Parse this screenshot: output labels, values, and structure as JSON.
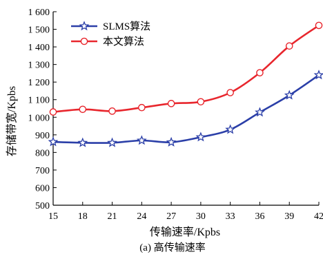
{
  "chart_data": {
    "type": "line",
    "caption": "(a) 高传输速率",
    "xlabel": "传输速率/Kpbs",
    "ylabel": "存储带宽/Kpbs",
    "x": [
      15,
      18,
      21,
      24,
      27,
      30,
      33,
      36,
      39,
      42
    ],
    "xticks": [
      "15",
      "18",
      "21",
      "24",
      "27",
      "30",
      "33",
      "36",
      "39",
      "42"
    ],
    "xlim": [
      15,
      42
    ],
    "ylim": [
      500,
      1600
    ],
    "yticks": [
      500,
      600,
      700,
      800,
      900,
      1000,
      1100,
      1200,
      1300,
      1400,
      1500,
      1600
    ],
    "ytick_labels": [
      "500",
      "600",
      "700",
      "800",
      "900",
      "1 000",
      "1 100",
      "1 200",
      "1 300",
      "1 400",
      "1 500",
      "1 600"
    ],
    "grid": false,
    "legend_position": "top-left",
    "series": [
      {
        "name": "SLMS算法",
        "color": "#2b3fa8",
        "marker": "star-icon",
        "values": [
          860,
          855,
          855,
          868,
          858,
          887,
          930,
          1028,
          1125,
          1240
        ]
      },
      {
        "name": "本文算法",
        "color": "#e8262d",
        "marker": "circle-icon",
        "values": [
          1030,
          1045,
          1035,
          1055,
          1078,
          1088,
          1140,
          1253,
          1405,
          1522
        ]
      }
    ]
  }
}
